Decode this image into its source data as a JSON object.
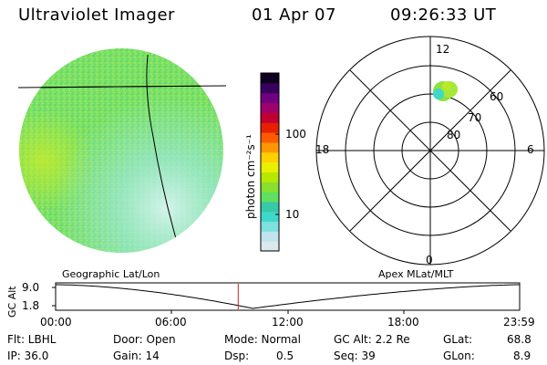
{
  "header": {
    "instrument": "Ultraviolet Imager",
    "date": "01 Apr 07",
    "time": "09:26:33 UT"
  },
  "colorbar": {
    "unit_label": "photon cm⁻²s⁻¹",
    "ticks": [
      "100",
      "10"
    ],
    "colors": [
      "#dde8ee",
      "#bfe4ee",
      "#7fe0e0",
      "#3fd8c8",
      "#39c8a8",
      "#5fe060",
      "#88e030",
      "#b8e800",
      "#e8f000",
      "#ffd000",
      "#ff9800",
      "#ff5a00",
      "#e82000",
      "#c00030",
      "#a0006a",
      "#700080",
      "#3a0060",
      "#100020"
    ]
  },
  "globe": {
    "name": "geographic-lat-lon-globe",
    "base_color": "#7be06a"
  },
  "polar": {
    "mlt_labels": {
      "top": "12",
      "left": "18",
      "right": "6",
      "bottom": "0"
    },
    "lat_labels": [
      "60",
      "70",
      "80"
    ]
  },
  "panel_titles": {
    "left": "Geographic Lat/Lon",
    "right": "Apex MLat/MLT"
  },
  "altitude_plot": {
    "ylabel": "GC Alt",
    "yticks": [
      "9.0",
      "1.8"
    ],
    "xticks": [
      "00:00",
      "06:00",
      "12:00",
      "18:00",
      "23:59"
    ],
    "marker_time": "09:26:33",
    "marker_color": "#cc2020"
  },
  "footer": {
    "flt": "Flt: LBHL",
    "ip": "IP: 36.0",
    "door": "Door: Open",
    "gain": "Gain: 14",
    "mode": "Mode: Normal",
    "dsp": "Dsp:",
    "dsp_val": "0.5",
    "gcalt": "GC Alt: 2.2 Re",
    "seq": "Seq: 39",
    "glat": "GLat:",
    "glat_val": "68.8",
    "glon": "GLon:",
    "glon_val": "8.9"
  }
}
